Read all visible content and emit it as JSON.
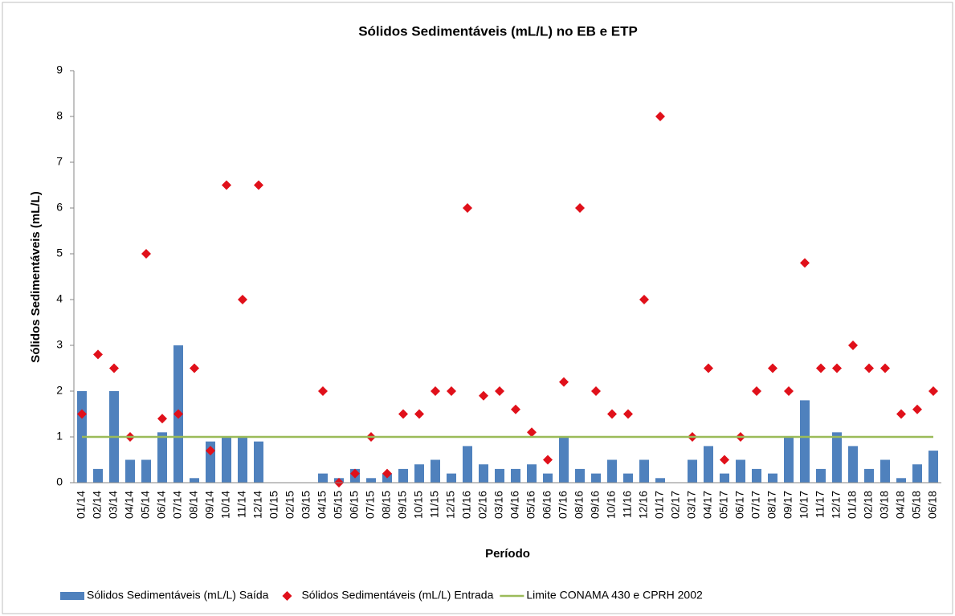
{
  "chart_data": {
    "type": "bar",
    "title": "Sólidos Sedimentáveis (mL/L) no EB e ETP",
    "x_label": "Período",
    "y_label": "Sólidos Sedimentáveis (mL/L)",
    "categories": [
      "01/14",
      "02/14",
      "03/14",
      "04/14",
      "05/14",
      "06/14",
      "07/14",
      "08/14",
      "09/14",
      "10/14",
      "11/14",
      "12/14",
      "01/15",
      "02/15",
      "03/15",
      "04/15",
      "05/15",
      "06/15",
      "07/15",
      "08/15",
      "09/15",
      "10/15",
      "11/15",
      "12/15",
      "01/16",
      "02/16",
      "03/16",
      "04/16",
      "05/16",
      "06/16",
      "07/16",
      "08/16",
      "09/16",
      "10/16",
      "11/16",
      "12/16",
      "01/17",
      "02/17",
      "03/17",
      "04/17",
      "05/17",
      "06/17",
      "07/17",
      "08/17",
      "09/17",
      "10/17",
      "11/17",
      "12/17",
      "01/18",
      "02/18",
      "03/18",
      "04/18",
      "05/18",
      "06/18"
    ],
    "series": [
      {
        "name": "Sólidos Sedimentáveis (mL/L) Saída",
        "type": "bar",
        "color": "#4f81bd",
        "values": [
          2.0,
          0.3,
          2.0,
          0.5,
          0.5,
          1.1,
          3.0,
          0.1,
          0.9,
          1.0,
          1.0,
          0.9,
          null,
          null,
          null,
          0.2,
          0.1,
          0.3,
          0.1,
          0.2,
          0.3,
          0.4,
          0.5,
          0.2,
          0.8,
          0.4,
          0.3,
          0.3,
          0.4,
          0.2,
          1.0,
          0.3,
          0.2,
          0.5,
          0.2,
          0.5,
          0.1,
          null,
          0.5,
          0.8,
          0.2,
          0.5,
          0.3,
          0.2,
          1.0,
          1.8,
          0.3,
          1.1,
          0.8,
          0.3,
          0.5,
          0.1,
          0.4,
          0.7
        ]
      },
      {
        "name": "Sólidos Sedimentáveis (mL/L)  Entrada",
        "type": "scatter",
        "color": "#e0101a",
        "values": [
          1.5,
          2.8,
          2.5,
          1.0,
          5.0,
          1.4,
          1.5,
          2.5,
          0.7,
          6.5,
          4.0,
          6.5,
          null,
          null,
          null,
          2.0,
          0.0,
          0.2,
          1.0,
          0.2,
          1.5,
          1.5,
          2.0,
          2.0,
          6.0,
          1.9,
          2.0,
          1.6,
          1.1,
          0.5,
          2.2,
          6.0,
          2.0,
          1.5,
          1.5,
          4.0,
          8.0,
          null,
          1.0,
          2.5,
          0.5,
          1.0,
          2.0,
          2.5,
          2.0,
          4.8,
          2.5,
          2.5,
          3.0,
          2.5,
          2.5,
          1.5,
          1.6,
          2.0
        ]
      },
      {
        "name": "Limite CONAMA 430 e CPRH 2002",
        "type": "line",
        "color": "#9bbb59",
        "values": [
          1,
          1,
          1,
          1,
          1,
          1,
          1,
          1,
          1,
          1,
          1,
          1,
          1,
          1,
          1,
          1,
          1,
          1,
          1,
          1,
          1,
          1,
          1,
          1,
          1,
          1,
          1,
          1,
          1,
          1,
          1,
          1,
          1,
          1,
          1,
          1,
          1,
          1,
          1,
          1,
          1,
          1,
          1,
          1,
          1,
          1,
          1,
          1,
          1,
          1,
          1,
          1,
          1,
          1
        ]
      }
    ],
    "ylim": [
      0,
      9
    ],
    "yticks": [
      0,
      1,
      2,
      3,
      4,
      5,
      6,
      7,
      8,
      9
    ],
    "grid": false
  }
}
